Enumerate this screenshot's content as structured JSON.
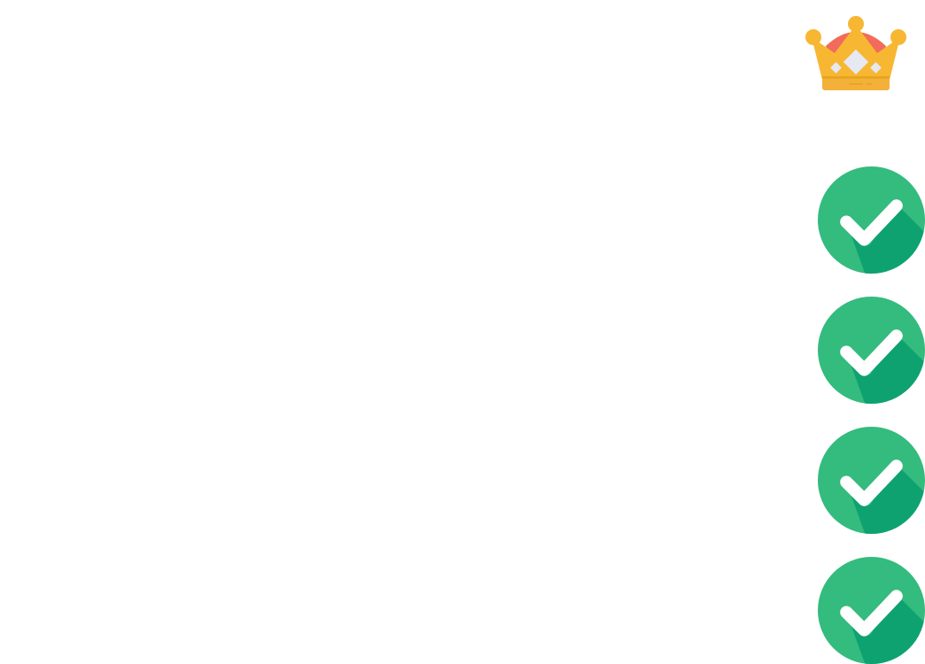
{
  "header": {
    "icon": "crown-icon",
    "colors": {
      "gold": "#F7B733",
      "gold_dark": "#E9A51F",
      "red": "#F26B5B",
      "diamond": "#E6E9F2"
    }
  },
  "checklist": {
    "icon": "check-circle-icon",
    "count": 4,
    "colors": {
      "circle": "#34BB7E",
      "shadow": "#0EA271",
      "mark": "#FFFFFF"
    }
  }
}
